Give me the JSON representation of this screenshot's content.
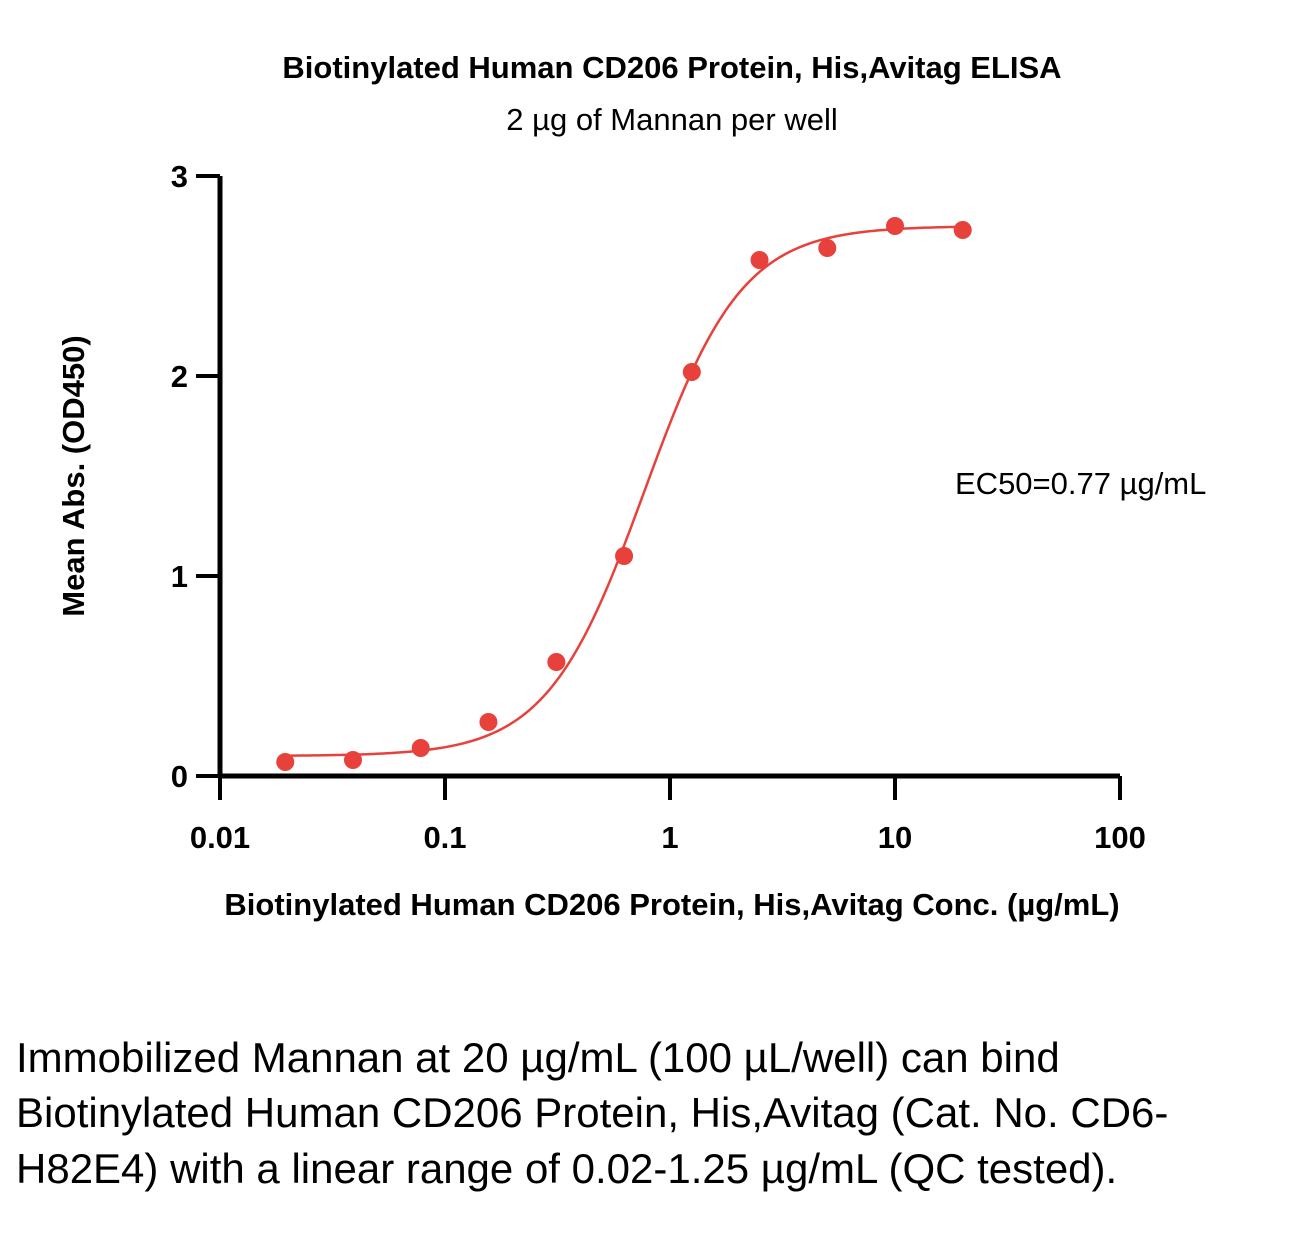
{
  "chart_data": {
    "type": "scatter",
    "title": "Biotinylated Human CD206 Protein, His,Avitag ELISA",
    "subtitle": "2 µg of Mannan per well",
    "xlabel": "Biotinylated Human CD206 Protein, His,Avitag Conc. (µg/mL)",
    "ylabel": "Mean Abs. (OD450)",
    "x_scale": "log",
    "xlim": [
      0.01,
      100
    ],
    "ylim": [
      0,
      3
    ],
    "x_ticks": [
      "0.01",
      "0.1",
      "1",
      "10",
      "100"
    ],
    "y_ticks": [
      "0",
      "1",
      "2",
      "3"
    ],
    "grid": false,
    "legend": "none",
    "annotation": "EC50=0.77 µg/mL",
    "color": "#e8413b",
    "points": [
      {
        "x": 0.0195,
        "y": 0.07
      },
      {
        "x": 0.039,
        "y": 0.08
      },
      {
        "x": 0.078,
        "y": 0.14
      },
      {
        "x": 0.156,
        "y": 0.27
      },
      {
        "x": 0.3125,
        "y": 0.57
      },
      {
        "x": 0.625,
        "y": 1.1
      },
      {
        "x": 1.25,
        "y": 2.02
      },
      {
        "x": 2.5,
        "y": 2.58
      },
      {
        "x": 5,
        "y": 2.64
      },
      {
        "x": 10,
        "y": 2.75
      },
      {
        "x": 20,
        "y": 2.73
      }
    ],
    "fit": {
      "model": "4PL",
      "bottom": 0.1,
      "top": 2.75,
      "ec50": 0.77,
      "hill": 2.0
    }
  },
  "caption": "Immobilized Mannan at 20 µg/mL (100 µL/well) can bind Biotinylated Human CD206 Protein, His,Avitag (Cat. No. CD6-H82E4) with a linear range of 0.02-1.25 µg/mL (QC tested)."
}
